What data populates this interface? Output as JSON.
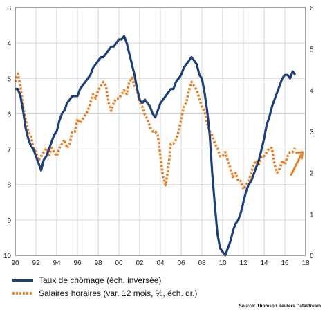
{
  "chart_data": {
    "type": "line",
    "x_ticks": [
      "90",
      "92",
      "94",
      "96",
      "98",
      "00",
      "02",
      "04",
      "06",
      "08",
      "10",
      "12",
      "14",
      "16",
      "18"
    ],
    "x_range": [
      1990,
      2018
    ],
    "left_axis": {
      "ticks": [
        "3",
        "4",
        "5",
        "6",
        "7",
        "8",
        "9",
        "10"
      ],
      "range": [
        3,
        10
      ],
      "inverted": true
    },
    "right_axis": {
      "ticks": [
        "0",
        "1",
        "2",
        "3",
        "4",
        "5",
        "6"
      ],
      "range": [
        0,
        6
      ]
    },
    "grid": true,
    "legend_position": "bottom-left",
    "source": "Source: Thomson Reuters Datastream",
    "colors": {
      "unemployment": "#1f3f7a",
      "wages": "#e8822a"
    },
    "series": [
      {
        "name": "Taux de chômage (éch. inversée)",
        "axis": "left",
        "style": "solid",
        "x": [
          1990.0,
          1990.25,
          1990.5,
          1990.75,
          1991.0,
          1991.25,
          1991.5,
          1991.75,
          1992.0,
          1992.25,
          1992.5,
          1992.75,
          1993.0,
          1993.25,
          1993.5,
          1993.75,
          1994.0,
          1994.25,
          1994.5,
          1994.75,
          1995.0,
          1995.25,
          1995.5,
          1995.75,
          1996.0,
          1996.25,
          1996.5,
          1996.75,
          1997.0,
          1997.25,
          1997.5,
          1997.75,
          1998.0,
          1998.25,
          1998.5,
          1998.75,
          1999.0,
          1999.25,
          1999.5,
          1999.75,
          2000.0,
          2000.25,
          2000.5,
          2000.75,
          2001.0,
          2001.25,
          2001.5,
          2001.75,
          2002.0,
          2002.25,
          2002.5,
          2002.75,
          2003.0,
          2003.25,
          2003.5,
          2003.75,
          2004.0,
          2004.25,
          2004.5,
          2004.75,
          2005.0,
          2005.25,
          2005.5,
          2005.75,
          2006.0,
          2006.25,
          2006.5,
          2006.75,
          2007.0,
          2007.25,
          2007.5,
          2007.75,
          2008.0,
          2008.25,
          2008.5,
          2008.75,
          2009.0,
          2009.25,
          2009.5,
          2009.75,
          2010.0,
          2010.25,
          2010.5,
          2010.75,
          2011.0,
          2011.25,
          2011.5,
          2011.75,
          2012.0,
          2012.25,
          2012.5,
          2012.75,
          2013.0,
          2013.25,
          2013.5,
          2013.75,
          2014.0,
          2014.25,
          2014.5,
          2014.75,
          2015.0,
          2015.25,
          2015.5,
          2015.75,
          2016.0,
          2016.25,
          2016.5,
          2016.75,
          2017.0
        ],
        "values": [
          5.3,
          5.3,
          5.5,
          5.9,
          6.4,
          6.7,
          6.9,
          7.0,
          7.2,
          7.4,
          7.6,
          7.3,
          7.2,
          7.0,
          6.8,
          6.6,
          6.5,
          6.2,
          6.0,
          5.9,
          5.7,
          5.6,
          5.5,
          5.5,
          5.5,
          5.3,
          5.2,
          5.1,
          5.0,
          4.9,
          4.7,
          4.6,
          4.5,
          4.4,
          4.4,
          4.3,
          4.2,
          4.1,
          4.1,
          4.0,
          3.9,
          3.9,
          3.8,
          4.0,
          4.3,
          4.6,
          4.9,
          5.3,
          5.6,
          5.7,
          5.6,
          5.7,
          5.8,
          6.0,
          6.1,
          5.9,
          5.7,
          5.6,
          5.5,
          5.4,
          5.3,
          5.3,
          5.1,
          5.0,
          4.9,
          4.7,
          4.6,
          4.5,
          4.4,
          4.5,
          4.6,
          4.9,
          5.0,
          5.4,
          5.9,
          6.6,
          7.7,
          8.6,
          9.4,
          9.8,
          9.9,
          10.0,
          9.8,
          9.6,
          9.3,
          9.1,
          9.0,
          8.8,
          8.5,
          8.2,
          8.0,
          7.9,
          7.7,
          7.5,
          7.3,
          7.0,
          6.7,
          6.3,
          6.1,
          5.8,
          5.6,
          5.4,
          5.2,
          5.0,
          4.9,
          4.9,
          5.0,
          4.8,
          4.9
        ]
      },
      {
        "name": "Salaires horaires (var. 12 mois, %, éch. dr.)",
        "axis": "right",
        "style": "dashed",
        "x": [
          1990.0,
          1990.25,
          1990.5,
          1990.75,
          1991.0,
          1991.25,
          1991.5,
          1991.75,
          1992.0,
          1992.25,
          1992.5,
          1992.75,
          1993.0,
          1993.25,
          1993.5,
          1993.75,
          1994.0,
          1994.25,
          1994.5,
          1994.75,
          1995.0,
          1995.25,
          1995.5,
          1995.75,
          1996.0,
          1996.25,
          1996.5,
          1996.75,
          1997.0,
          1997.25,
          1997.5,
          1997.75,
          1998.0,
          1998.25,
          1998.5,
          1998.75,
          1999.0,
          1999.25,
          1999.5,
          1999.75,
          2000.0,
          2000.25,
          2000.5,
          2000.75,
          2001.0,
          2001.25,
          2001.5,
          2001.75,
          2002.0,
          2002.25,
          2002.5,
          2002.75,
          2003.0,
          2003.25,
          2003.5,
          2003.75,
          2004.0,
          2004.25,
          2004.5,
          2004.75,
          2005.0,
          2005.25,
          2005.5,
          2005.75,
          2006.0,
          2006.25,
          2006.5,
          2006.75,
          2007.0,
          2007.25,
          2007.5,
          2007.75,
          2008.0,
          2008.25,
          2008.5,
          2008.75,
          2009.0,
          2009.25,
          2009.5,
          2009.75,
          2010.0,
          2010.25,
          2010.5,
          2010.75,
          2011.0,
          2011.25,
          2011.5,
          2011.75,
          2012.0,
          2012.25,
          2012.5,
          2012.75,
          2013.0,
          2013.25,
          2013.5,
          2013.75,
          2014.0,
          2014.25,
          2014.5,
          2014.75,
          2015.0,
          2015.25,
          2015.5,
          2015.75,
          2016.0,
          2016.25,
          2016.5,
          2016.75,
          2017.0
        ],
        "values": [
          4.2,
          4.4,
          4.1,
          3.6,
          3.3,
          3.0,
          2.9,
          2.6,
          2.5,
          2.3,
          2.4,
          2.5,
          2.6,
          2.4,
          2.6,
          2.5,
          2.4,
          2.6,
          2.7,
          2.8,
          2.6,
          2.7,
          3.0,
          3.0,
          3.3,
          3.2,
          3.3,
          3.4,
          3.5,
          3.7,
          3.9,
          3.8,
          4.0,
          4.1,
          4.2,
          4.1,
          3.7,
          3.5,
          3.7,
          3.8,
          3.8,
          3.9,
          4.0,
          3.9,
          4.2,
          4.3,
          4.1,
          4.0,
          3.7,
          3.6,
          3.4,
          3.3,
          3.1,
          3.0,
          3.0,
          2.9,
          2.4,
          1.9,
          1.7,
          2.1,
          2.7,
          2.7,
          2.8,
          3.0,
          3.3,
          3.6,
          3.7,
          4.0,
          4.2,
          4.1,
          4.0,
          3.8,
          3.6,
          3.5,
          3.2,
          3.0,
          2.9,
          2.7,
          2.6,
          2.4,
          2.4,
          2.5,
          2.3,
          2.1,
          1.9,
          2.0,
          1.8,
          1.8,
          1.6,
          1.7,
          1.8,
          2.0,
          2.2,
          2.3,
          2.2,
          2.4,
          2.4,
          2.5,
          2.6,
          2.6,
          2.2,
          2.0,
          2.1,
          2.3,
          2.2,
          2.4,
          2.5,
          2.5,
          2.6
        ]
      }
    ]
  },
  "legend": {
    "items": [
      {
        "label": "Taux de chômage (éch. inversée)"
      },
      {
        "label": "Salaires horaires (var. 12 mois, %, éch. dr.)"
      }
    ]
  }
}
